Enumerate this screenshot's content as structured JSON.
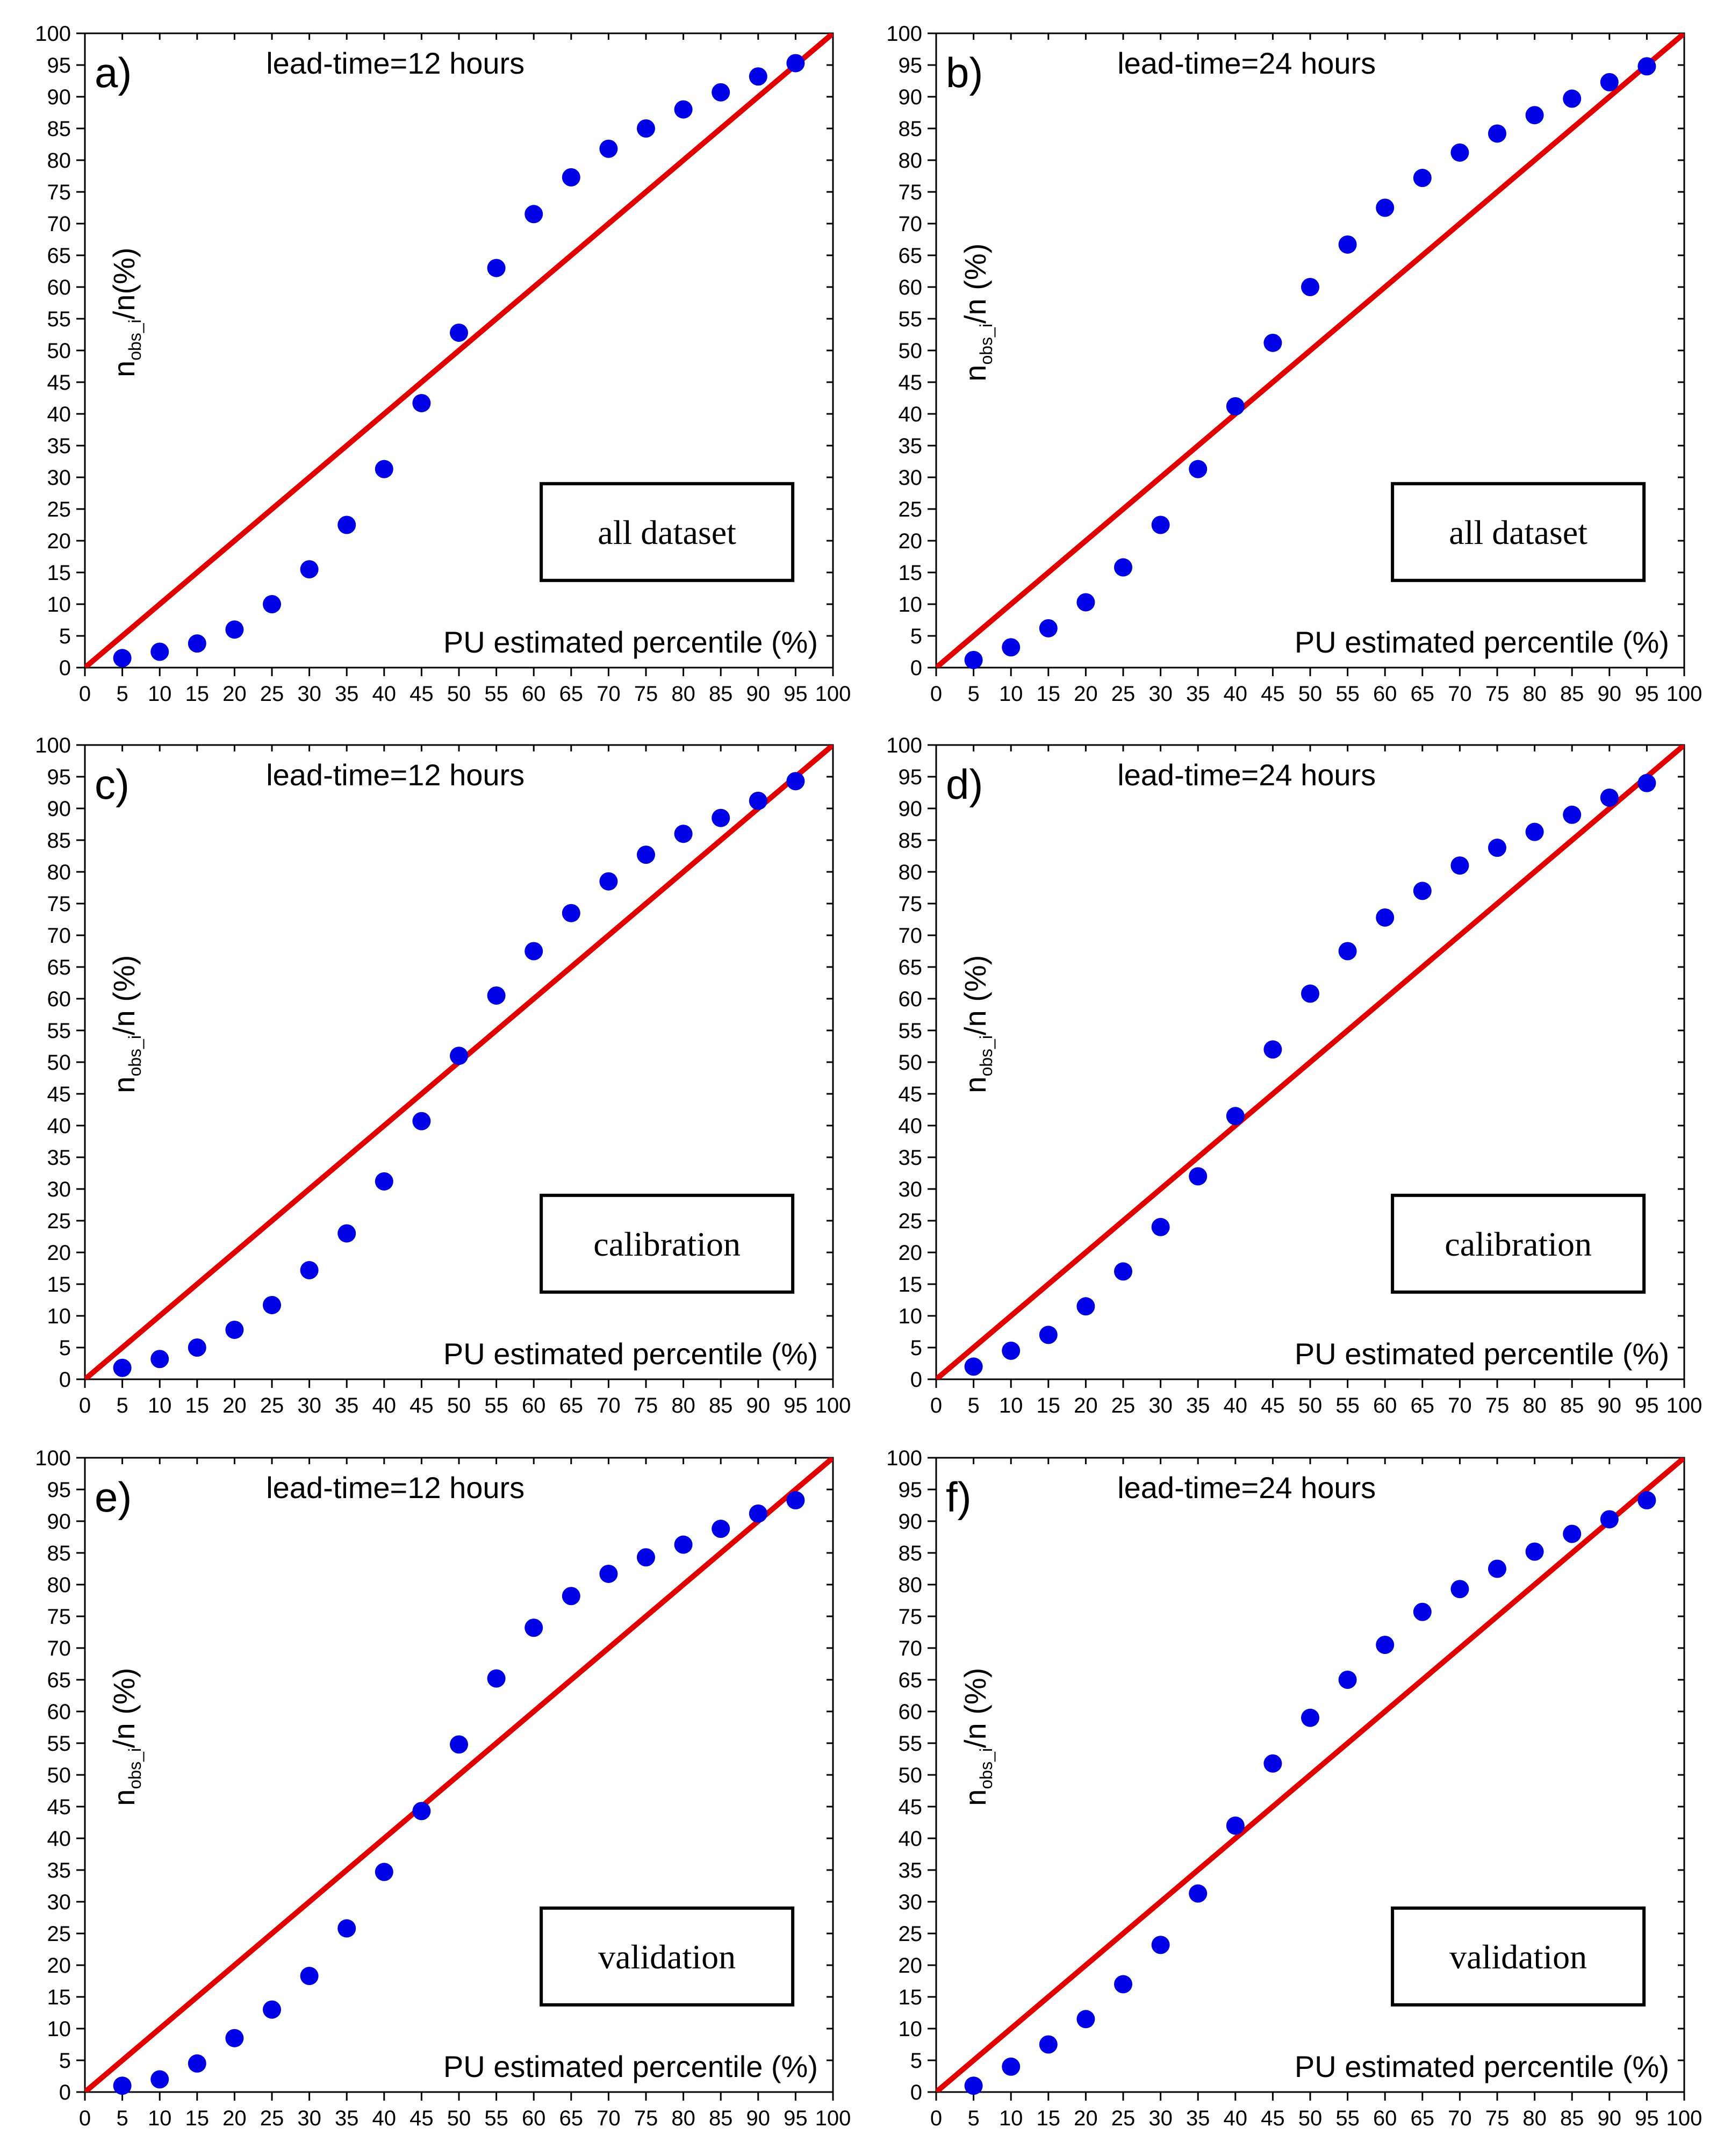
{
  "chart_data": [
    {
      "id": "a",
      "type": "scatter",
      "panel_label": "a)",
      "lead_time": "lead-time=12 hours",
      "dataset": "all dataset",
      "xlabel": "PU estimated percentile (%)",
      "ylabel": {
        "main": "n",
        "sub": "obs_i",
        "suffix": "/n(%)"
      },
      "xlim": [
        0,
        100
      ],
      "ylim": [
        0,
        100
      ],
      "ticks": [
        0,
        5,
        10,
        15,
        20,
        25,
        30,
        35,
        40,
        45,
        50,
        55,
        60,
        65,
        70,
        75,
        80,
        85,
        90,
        95,
        100
      ],
      "x": [
        5,
        10,
        15,
        20,
        25,
        30,
        35,
        40,
        45,
        50,
        55,
        60,
        65,
        70,
        75,
        80,
        85,
        90,
        95
      ],
      "y": [
        1.5,
        2.5,
        3.8,
        6,
        10,
        15.5,
        22.5,
        31.3,
        41.7,
        52.8,
        63,
        71.5,
        77.3,
        81.8,
        85,
        88,
        90.7,
        93.2,
        95.3
      ],
      "reference_line": [
        [
          0,
          0
        ],
        [
          100,
          100
        ]
      ],
      "marker_color": "#0000e6",
      "line_color": "#e00000"
    },
    {
      "id": "b",
      "type": "scatter",
      "panel_label": "b)",
      "lead_time": "lead-time=24 hours",
      "dataset": "all dataset",
      "xlabel": "PU estimated percentile (%)",
      "ylabel": {
        "main": "n",
        "sub": "obs_i",
        "suffix": "/n (%)"
      },
      "xlim": [
        0,
        100
      ],
      "ylim": [
        0,
        100
      ],
      "ticks": [
        0,
        5,
        10,
        15,
        20,
        25,
        30,
        35,
        40,
        45,
        50,
        55,
        60,
        65,
        70,
        75,
        80,
        85,
        90,
        95,
        100
      ],
      "x": [
        5,
        10,
        15,
        20,
        25,
        30,
        35,
        40,
        45,
        50,
        55,
        60,
        65,
        70,
        75,
        80,
        85,
        90,
        95
      ],
      "y": [
        1.2,
        3.2,
        6.2,
        10.3,
        15.8,
        22.5,
        31.3,
        41.2,
        51.2,
        60,
        66.7,
        72.5,
        77.2,
        81.2,
        84.2,
        87.1,
        89.7,
        92.3,
        94.8
      ],
      "reference_line": [
        [
          0,
          0
        ],
        [
          100,
          100
        ]
      ],
      "marker_color": "#0000e6",
      "line_color": "#e00000"
    },
    {
      "id": "c",
      "type": "scatter",
      "panel_label": "c)",
      "lead_time": "lead-time=12 hours",
      "dataset": "calibration",
      "xlabel": "PU estimated percentile (%)",
      "ylabel": {
        "main": "n",
        "sub": "obs_i",
        "suffix": "/n (%)"
      },
      "xlim": [
        0,
        100
      ],
      "ylim": [
        0,
        100
      ],
      "ticks": [
        0,
        5,
        10,
        15,
        20,
        25,
        30,
        35,
        40,
        45,
        50,
        55,
        60,
        65,
        70,
        75,
        80,
        85,
        90,
        95,
        100
      ],
      "x": [
        5,
        10,
        15,
        20,
        25,
        30,
        35,
        40,
        45,
        50,
        55,
        60,
        65,
        70,
        75,
        80,
        85,
        90,
        95
      ],
      "y": [
        1.8,
        3.2,
        5,
        7.8,
        11.7,
        17.2,
        23,
        31.2,
        40.7,
        51,
        60.5,
        67.5,
        73.5,
        78.5,
        82.7,
        86,
        88.5,
        91.2,
        94.3
      ],
      "reference_line": [
        [
          0,
          0
        ],
        [
          100,
          100
        ]
      ],
      "marker_color": "#0000e6",
      "line_color": "#e00000"
    },
    {
      "id": "d",
      "type": "scatter",
      "panel_label": "d)",
      "lead_time": "lead-time=24 hours",
      "dataset": "calibration",
      "xlabel": "PU estimated percentile (%)",
      "ylabel": {
        "main": "n",
        "sub": "obs_i",
        "suffix": "/n (%)"
      },
      "xlim": [
        0,
        100
      ],
      "ylim": [
        0,
        100
      ],
      "ticks": [
        0,
        5,
        10,
        15,
        20,
        25,
        30,
        35,
        40,
        45,
        50,
        55,
        60,
        65,
        70,
        75,
        80,
        85,
        90,
        95,
        100
      ],
      "x": [
        5,
        10,
        15,
        20,
        25,
        30,
        35,
        40,
        45,
        50,
        55,
        60,
        65,
        70,
        75,
        80,
        85,
        90,
        95
      ],
      "y": [
        2,
        4.5,
        7,
        11.5,
        17,
        24,
        32,
        41.5,
        52,
        60.8,
        67.5,
        72.8,
        77,
        81,
        83.8,
        86.3,
        89,
        91.7,
        94
      ],
      "reference_line": [
        [
          0,
          0
        ],
        [
          100,
          100
        ]
      ],
      "marker_color": "#0000e6",
      "line_color": "#e00000"
    },
    {
      "id": "e",
      "type": "scatter",
      "panel_label": "e)",
      "lead_time": "lead-time=12 hours",
      "dataset": "validation",
      "xlabel": "PU estimated percentile (%)",
      "ylabel": {
        "main": "n",
        "sub": "obs_i",
        "suffix": "/n (%)"
      },
      "xlim": [
        0,
        100
      ],
      "ylim": [
        0,
        100
      ],
      "ticks": [
        0,
        5,
        10,
        15,
        20,
        25,
        30,
        35,
        40,
        45,
        50,
        55,
        60,
        65,
        70,
        75,
        80,
        85,
        90,
        95,
        100
      ],
      "x": [
        5,
        10,
        15,
        20,
        25,
        30,
        35,
        40,
        45,
        50,
        55,
        60,
        65,
        70,
        75,
        80,
        85,
        90,
        95
      ],
      "y": [
        1,
        2,
        4.5,
        8.5,
        13,
        18.3,
        25.8,
        34.7,
        44.3,
        54.8,
        65.2,
        73.2,
        78.2,
        81.7,
        84.3,
        86.3,
        88.8,
        91.2,
        93.3
      ],
      "reference_line": [
        [
          0,
          0
        ],
        [
          100,
          100
        ]
      ],
      "marker_color": "#0000e6",
      "line_color": "#e00000"
    },
    {
      "id": "f",
      "type": "scatter",
      "panel_label": "f)",
      "lead_time": "lead-time=24 hours",
      "dataset": "validation",
      "xlabel": "PU estimated percentile (%)",
      "ylabel": {
        "main": "n",
        "sub": "obs_i",
        "suffix": "/n (%)"
      },
      "xlim": [
        0,
        100
      ],
      "ylim": [
        0,
        100
      ],
      "ticks": [
        0,
        5,
        10,
        15,
        20,
        25,
        30,
        35,
        40,
        45,
        50,
        55,
        60,
        65,
        70,
        75,
        80,
        85,
        90,
        95,
        100
      ],
      "x": [
        5,
        10,
        15,
        20,
        25,
        30,
        35,
        40,
        45,
        50,
        55,
        60,
        65,
        70,
        75,
        80,
        85,
        90,
        95
      ],
      "y": [
        1,
        4,
        7.5,
        11.5,
        17,
        23.2,
        31.3,
        42,
        51.8,
        59,
        65,
        70.5,
        75.7,
        79.3,
        82.5,
        85.2,
        88,
        90.3,
        93.3
      ],
      "reference_line": [
        [
          0,
          0
        ],
        [
          100,
          100
        ]
      ],
      "marker_color": "#0000e6",
      "line_color": "#e00000"
    }
  ]
}
